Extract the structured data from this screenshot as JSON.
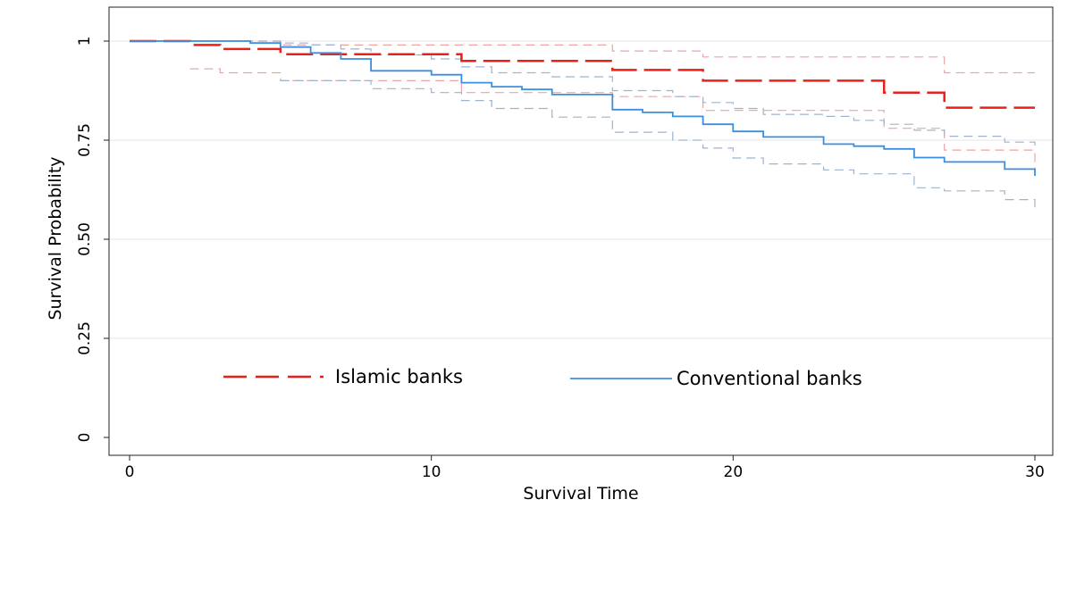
{
  "chart_data": {
    "type": "line",
    "step": true,
    "title": "",
    "xlabel": "Survival Time",
    "ylabel": "Survival Probability",
    "xlim": [
      0,
      30
    ],
    "ylim": [
      0,
      1
    ],
    "x_ticks": [
      0,
      10,
      20,
      30
    ],
    "x_tick_labels": [
      "0",
      "10",
      "20",
      "30"
    ],
    "y_ticks": [
      0,
      0.25,
      0.5,
      0.75,
      1
    ],
    "y_tick_labels": [
      "0",
      "0.25",
      "0.50",
      "0.75",
      "1"
    ],
    "grid": "horizontal",
    "legend_position": "inside-bottom",
    "series": [
      {
        "name": "Islamic banks",
        "color": "#e8201c",
        "style": "long-dash",
        "x": [
          0,
          2,
          3,
          5,
          11,
          16,
          19,
          25,
          27,
          30
        ],
        "y": [
          1.0,
          0.99,
          0.98,
          0.967,
          0.95,
          0.927,
          0.9,
          0.87,
          0.832,
          0.832
        ]
      },
      {
        "name": "Conventional banks",
        "color": "#3a8fe0",
        "style": "solid",
        "x": [
          0,
          4,
          5,
          6,
          7,
          8,
          10,
          11,
          12,
          13,
          14,
          16,
          17,
          18,
          19,
          20,
          21,
          23,
          24,
          25,
          26,
          27,
          29,
          30
        ],
        "y": [
          1.0,
          0.995,
          0.985,
          0.97,
          0.955,
          0.925,
          0.915,
          0.895,
          0.885,
          0.878,
          0.865,
          0.827,
          0.82,
          0.81,
          0.79,
          0.772,
          0.758,
          0.74,
          0.735,
          0.728,
          0.706,
          0.695,
          0.677,
          0.66
        ]
      }
    ],
    "confidence_bands": [
      {
        "series": "Islamic banks",
        "color": "#eaa6a4",
        "upper": {
          "x": [
            0,
            5,
            16,
            19,
            27,
            30
          ],
          "y": [
            1.0,
            0.99,
            0.975,
            0.96,
            0.92,
            0.92
          ]
        },
        "lower": {
          "x": [
            2,
            3,
            5,
            11,
            16,
            19,
            25,
            27,
            30
          ],
          "y": [
            0.93,
            0.92,
            0.9,
            0.87,
            0.86,
            0.825,
            0.78,
            0.725,
            0.668
          ]
        }
      },
      {
        "series": "Conventional banks",
        "color": "#9fb3cc",
        "upper": {
          "x": [
            0,
            5,
            6,
            7,
            8,
            10,
            11,
            12,
            14,
            16,
            18,
            19,
            20,
            21,
            23,
            24,
            25,
            26,
            27,
            29,
            30
          ],
          "y": [
            1.0,
            0.995,
            0.99,
            0.98,
            0.965,
            0.955,
            0.935,
            0.92,
            0.91,
            0.875,
            0.86,
            0.845,
            0.83,
            0.815,
            0.81,
            0.8,
            0.79,
            0.775,
            0.76,
            0.745,
            0.735
          ]
        },
        "lower": {
          "x": [
            5,
            8,
            10,
            11,
            12,
            14,
            16,
            18,
            19,
            20,
            21,
            23,
            24,
            26,
            27,
            29,
            30
          ],
          "y": [
            0.9,
            0.88,
            0.87,
            0.85,
            0.83,
            0.808,
            0.77,
            0.75,
            0.73,
            0.705,
            0.69,
            0.675,
            0.665,
            0.63,
            0.622,
            0.6,
            0.578
          ]
        }
      }
    ]
  }
}
